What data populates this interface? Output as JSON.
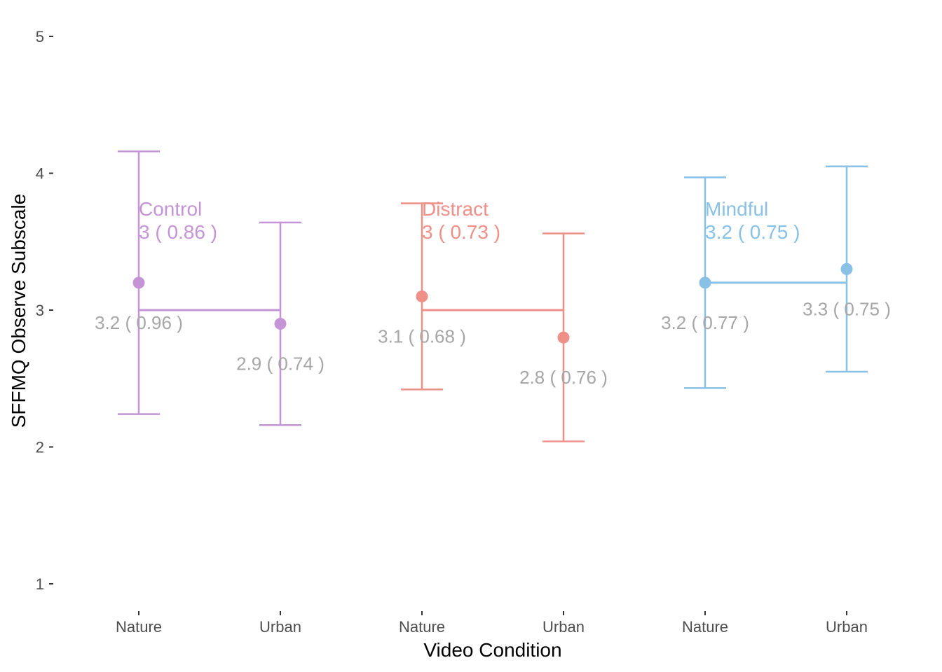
{
  "chart_data": {
    "type": "errorbar",
    "xlabel": "Video Condition",
    "ylabel": "SFFMQ Observe Subscale",
    "ylim": [
      1,
      5
    ],
    "yticks": [
      1,
      2,
      3,
      4,
      5
    ],
    "grid": false,
    "groups": [
      {
        "name": "Control",
        "color": "#C594D6",
        "group_mean": 3,
        "group_sd_label": "3 ( 0.86 )",
        "points": [
          {
            "x": "Nature",
            "mean": 3.2,
            "lower": 2.24,
            "upper": 4.16,
            "label": "3.2 ( 0.96 )"
          },
          {
            "x": "Urban",
            "mean": 2.9,
            "lower": 2.16,
            "upper": 3.64,
            "label": "2.9 ( 0.74 )"
          }
        ]
      },
      {
        "name": "Distract",
        "color": "#EE9088",
        "group_mean": 3,
        "group_sd_label": "3 ( 0.73 )",
        "points": [
          {
            "x": "Nature",
            "mean": 3.1,
            "lower": 2.42,
            "upper": 3.78,
            "label": "3.1 ( 0.68 )"
          },
          {
            "x": "Urban",
            "mean": 2.8,
            "lower": 2.04,
            "upper": 3.56,
            "label": "2.8 ( 0.76 )"
          }
        ]
      },
      {
        "name": "Mindful",
        "color": "#88C0E6",
        "group_mean": 3.2,
        "group_sd_label": "3.2 ( 0.75 )",
        "points": [
          {
            "x": "Nature",
            "mean": 3.2,
            "lower": 2.43,
            "upper": 3.97,
            "label": "3.2 ( 0.77 )"
          },
          {
            "x": "Urban",
            "mean": 3.3,
            "lower": 2.55,
            "upper": 4.05,
            "label": "3.3 ( 0.75 )"
          }
        ]
      }
    ]
  }
}
